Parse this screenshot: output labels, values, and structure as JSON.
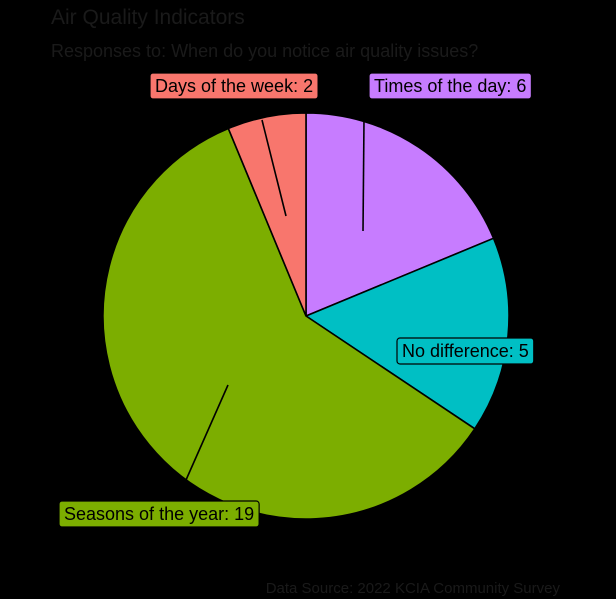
{
  "title": "Air Quality Indicators",
  "subtitle": "Responses to: When do you notice air quality issues?",
  "caption": "Data Source: 2022 KCIA Community Survey",
  "chart_data": {
    "type": "pie",
    "title": "Air Quality Indicators",
    "subtitle": "Responses to: When do you notice air quality issues?",
    "legend": "none",
    "slices": [
      {
        "label": "Times of the day",
        "value": 6,
        "color": "#C77CFF",
        "text": "Times of the day: 6"
      },
      {
        "label": "No difference",
        "value": 5,
        "color": "#00BFC4",
        "text": "No difference: 5"
      },
      {
        "label": "Seasons of the year",
        "value": 19,
        "color": "#7CAE00",
        "text": "Seasons of the year: 19"
      },
      {
        "label": "Days of the week",
        "value": 2,
        "color": "#F8766D",
        "text": "Days of the week: 2"
      }
    ]
  }
}
